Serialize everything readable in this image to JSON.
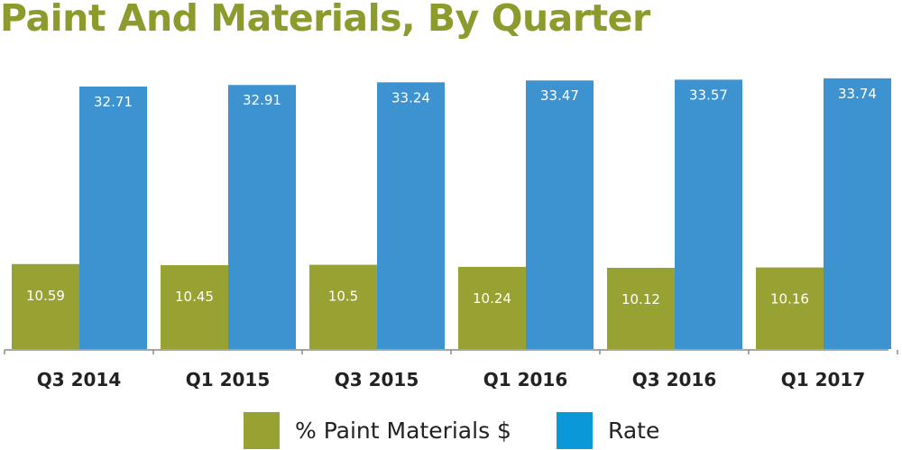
{
  "chart_data": {
    "type": "bar",
    "title": "Paint And Materials, By Quarter",
    "categories": [
      "Q3 2014",
      "Q1 2015",
      "Q3 2015",
      "Q1 2016",
      "Q3 2016",
      "Q1 2017"
    ],
    "series": [
      {
        "name": "% Paint Materials $",
        "color": "#97a232",
        "values": [
          10.59,
          10.45,
          10.5,
          10.24,
          10.12,
          10.16
        ],
        "labels": [
          "10.59",
          "10.45",
          "10.5",
          "10.24",
          "10.12",
          "10.16"
        ]
      },
      {
        "name": "Rate",
        "color": "#3d92d0",
        "values": [
          32.71,
          32.91,
          33.24,
          33.47,
          33.57,
          33.74
        ],
        "labels": [
          "32.71",
          "32.91",
          "33.24",
          "33.47",
          "33.57",
          "33.74"
        ]
      }
    ],
    "ylim": [
      0,
      34
    ],
    "grid": false,
    "legend": "bottom",
    "xlabel": "",
    "ylabel": ""
  },
  "legend_colors": [
    "#97a232",
    "#0b98d8"
  ]
}
